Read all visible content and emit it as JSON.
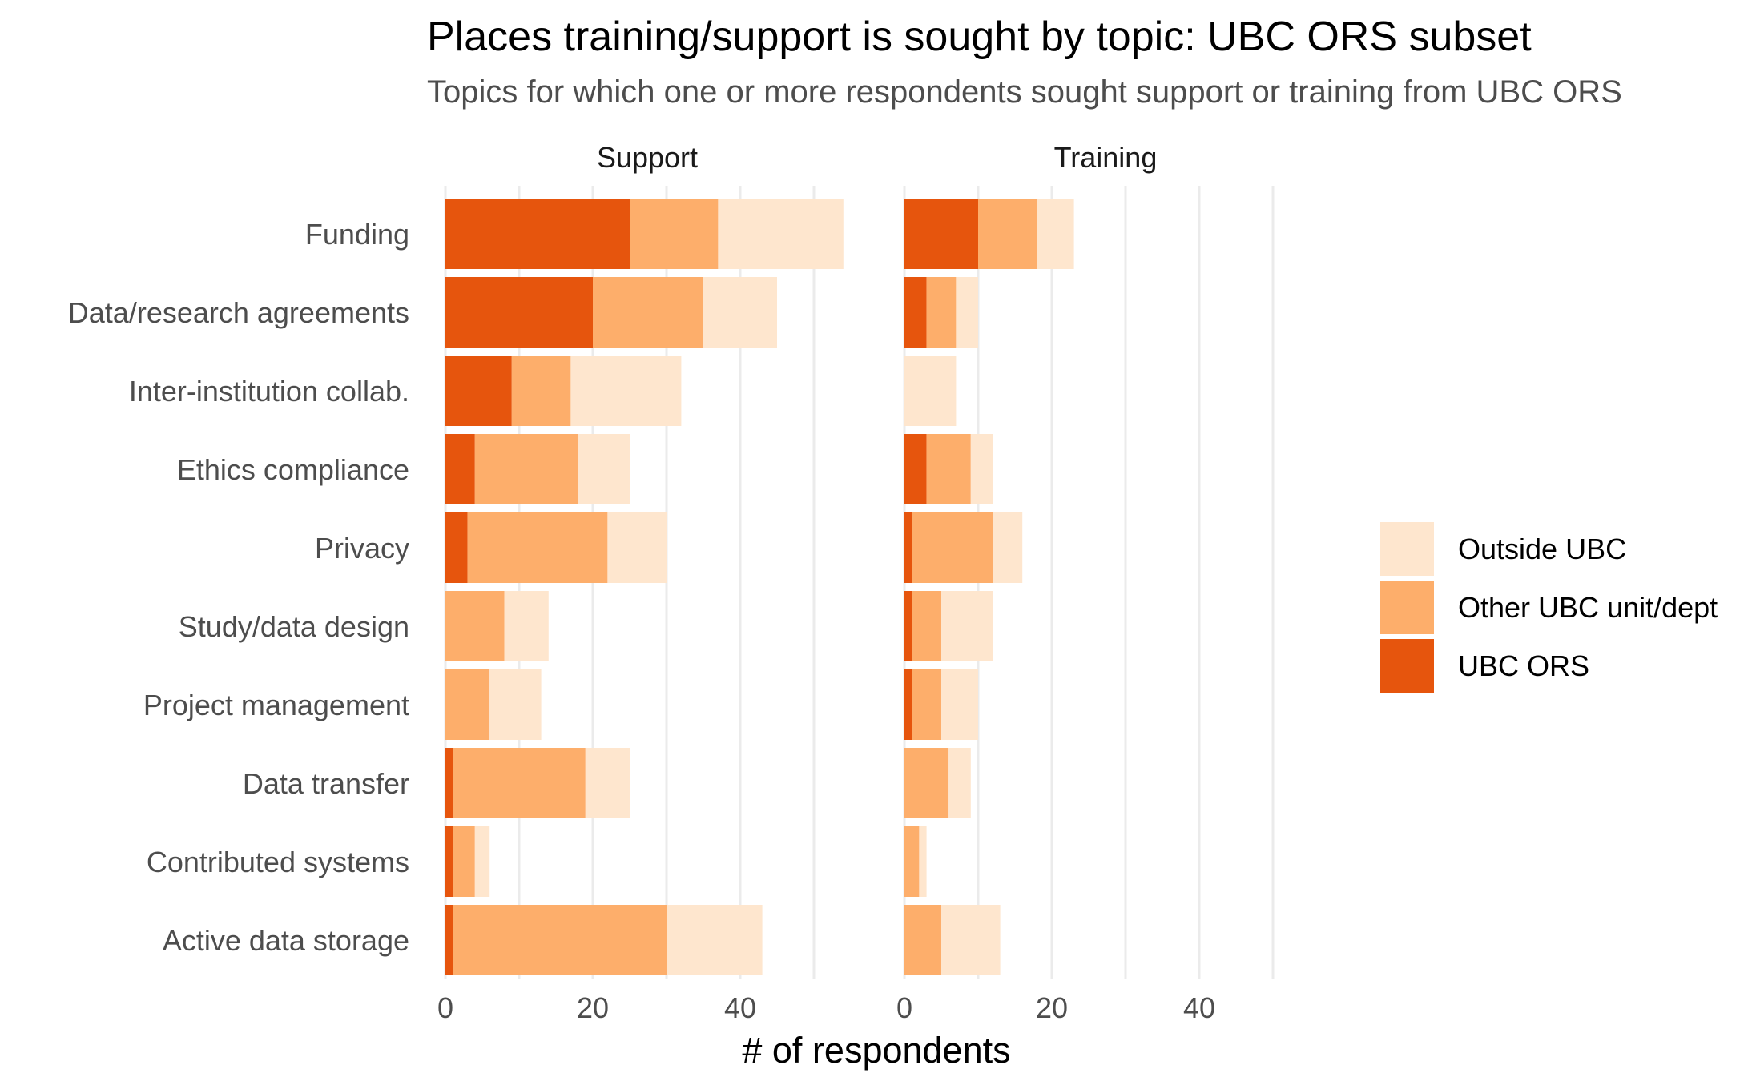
{
  "chart_data": {
    "type": "bar",
    "orientation": "horizontal",
    "stacked": true,
    "title": "Places training/support is sought by topic: UBC ORS subset",
    "subtitle": "Topics for which one or more respondents sought support or training from UBC ORS",
    "xlabel": "# of respondents",
    "xlim": [
      0,
      50
    ],
    "xticks": [
      0,
      20,
      40
    ],
    "grid": true,
    "legend_position": "right",
    "categories": [
      "Funding",
      "Data/research agreements",
      "Inter-institution collab.",
      "Ethics compliance",
      "Privacy",
      "Study/data design",
      "Project management",
      "Data transfer",
      "Contributed systems",
      "Active data storage"
    ],
    "legend": [
      {
        "name": "Outside UBC",
        "color": "#fee6ce"
      },
      {
        "name": "Other UBC unit/dept",
        "color": "#fdae6b"
      },
      {
        "name": "UBC ORS",
        "color": "#e6550d"
      }
    ],
    "panels": [
      {
        "name": "Support",
        "series": [
          {
            "name": "UBC ORS",
            "values": [
              25,
              20,
              9,
              4,
              3,
              0,
              0,
              1,
              1,
              1
            ]
          },
          {
            "name": "Other UBC unit/dept",
            "values": [
              12,
              15,
              8,
              14,
              19,
              8,
              6,
              18,
              3,
              29
            ]
          },
          {
            "name": "Outside UBC",
            "values": [
              17,
              10,
              15,
              7,
              8,
              6,
              7,
              6,
              2,
              13
            ]
          }
        ]
      },
      {
        "name": "Training",
        "series": [
          {
            "name": "UBC ORS",
            "values": [
              10,
              3,
              0,
              3,
              1,
              1,
              1,
              0,
              0,
              0
            ]
          },
          {
            "name": "Other UBC unit/dept",
            "values": [
              8,
              4,
              0,
              6,
              11,
              4,
              4,
              6,
              2,
              5
            ]
          },
          {
            "name": "Outside UBC",
            "values": [
              5,
              3,
              7,
              3,
              4,
              7,
              5,
              3,
              1,
              8
            ]
          }
        ]
      }
    ]
  }
}
